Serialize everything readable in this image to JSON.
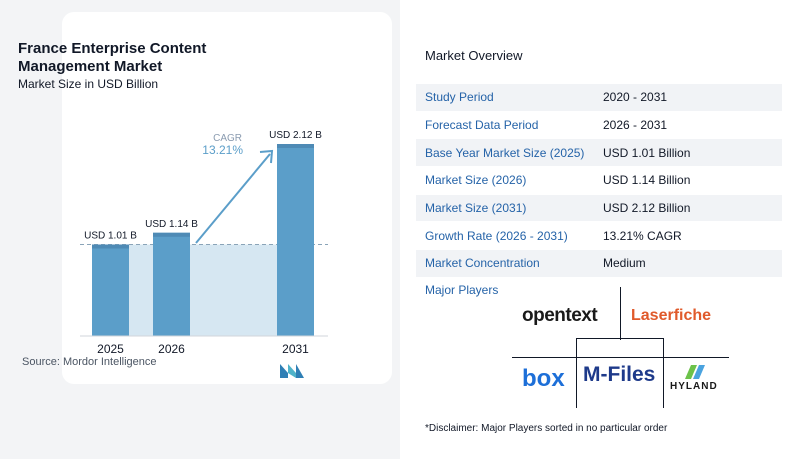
{
  "title": "France Enterprise Content Management Market",
  "subtitle": "Market Size in USD Billion",
  "source": "Source: Mordor Intelligence",
  "chart_data": {
    "type": "bar",
    "categories": [
      "2025",
      "2026",
      "2031"
    ],
    "values": [
      1.01,
      1.14,
      2.12
    ],
    "data_labels": [
      "USD 1.01 B",
      "USD 1.14 B",
      "USD 2.12 B"
    ],
    "cagr_label": "CAGR",
    "cagr_value": "13.21%",
    "ylim": [
      0,
      2.12
    ],
    "colors": {
      "bar": "#5b9ec9",
      "bar_top": "#4e8ab5",
      "band": "#d6e7f2",
      "arrow": "#5b9ec9"
    }
  },
  "overview": {
    "title": "Market Overview",
    "rows": [
      {
        "label": "Study Period",
        "value": "2020 - 2031"
      },
      {
        "label": "Forecast Data Period",
        "value": "2026 - 2031"
      },
      {
        "label": "Base Year Market Size (2025)",
        "value": "USD 1.01 Billion"
      },
      {
        "label": "Market Size (2026)",
        "value": "USD 1.14 Billion"
      },
      {
        "label": "Market Size (2031)",
        "value": "USD 2.12 Billion"
      },
      {
        "label": "Growth Rate (2026 - 2031)",
        "value": "13.21% CAGR"
      },
      {
        "label": "Market Concentration",
        "value": "Medium"
      }
    ]
  },
  "players": {
    "title": "Major Players",
    "logos": [
      "opentext",
      "Laserfiche",
      "box",
      "M-Files",
      "HYLAND"
    ]
  },
  "disclaimer": "*Disclaimer: Major Players sorted in no particular order"
}
